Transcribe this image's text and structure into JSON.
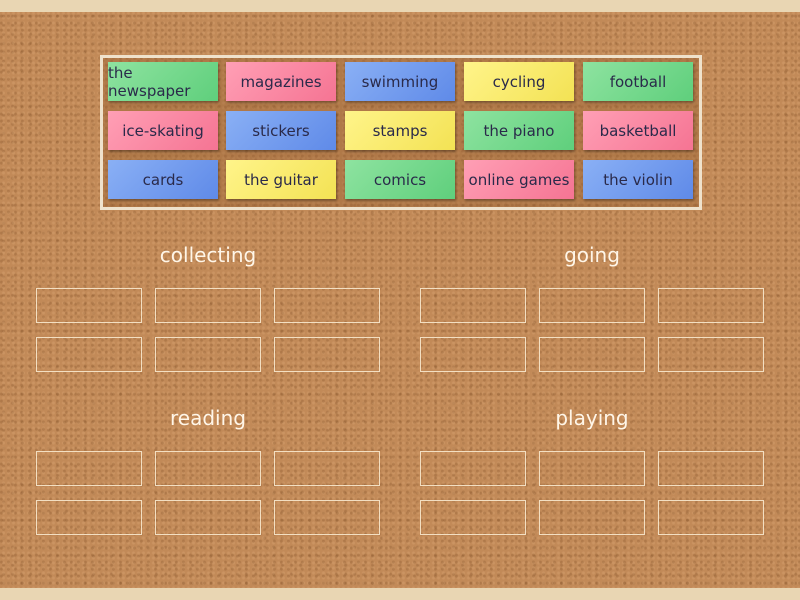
{
  "tiles": [
    {
      "label": "the newspaper",
      "color": "green"
    },
    {
      "label": "magazines",
      "color": "pink"
    },
    {
      "label": "swimming",
      "color": "blue"
    },
    {
      "label": "cycling",
      "color": "yellow"
    },
    {
      "label": "football",
      "color": "green"
    },
    {
      "label": "ice-skating",
      "color": "pink"
    },
    {
      "label": "stickers",
      "color": "blue"
    },
    {
      "label": "stamps",
      "color": "yellow"
    },
    {
      "label": "the piano",
      "color": "green"
    },
    {
      "label": "basketball",
      "color": "pink"
    },
    {
      "label": "cards",
      "color": "blue"
    },
    {
      "label": "the guitar",
      "color": "yellow"
    },
    {
      "label": "comics",
      "color": "green"
    },
    {
      "label": "online games",
      "color": "pink"
    },
    {
      "label": "the violin",
      "color": "blue"
    }
  ],
  "groups": [
    {
      "title": "collecting"
    },
    {
      "title": "going"
    },
    {
      "title": "reading"
    },
    {
      "title": "playing"
    }
  ]
}
